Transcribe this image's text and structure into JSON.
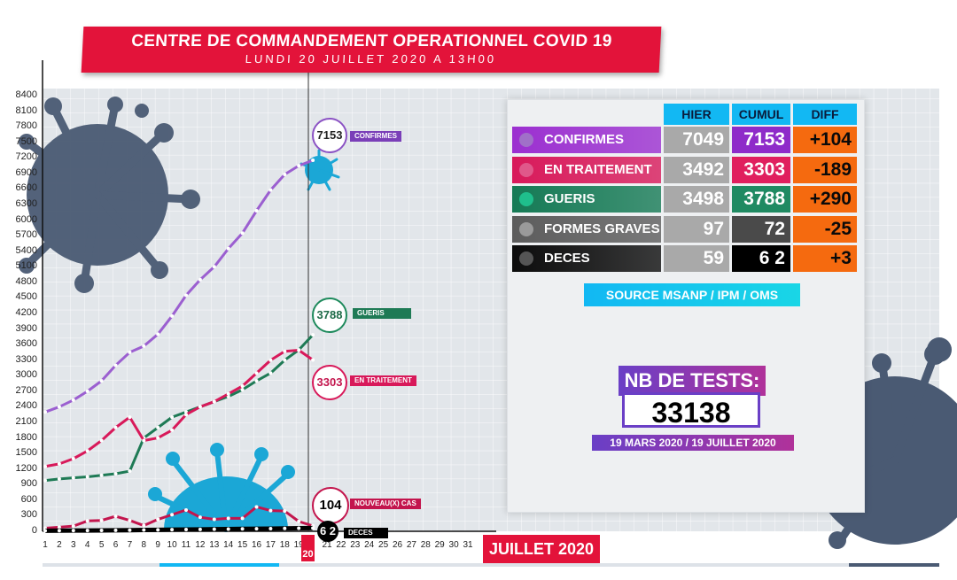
{
  "header": {
    "title": "CENTRE DE COMMANDEMENT OPERATIONNEL COVID 19",
    "subtitle": "LUNDI 20 JUILLET 2020 A 13H00"
  },
  "table": {
    "headers": [
      "HIER",
      "CUMUL",
      "DIFF"
    ],
    "rows": [
      {
        "label": "CONFIRMES",
        "hier": "7049",
        "cumul": "7153",
        "diff": "+104",
        "label_color": "#9b2fd0",
        "dot_color": "#a070c8",
        "cumul_color": "#8e2bc9"
      },
      {
        "label": "EN TRAITEMENT",
        "hier": "3492",
        "cumul": "3303",
        "diff": "-189",
        "label_color": "#d8195a",
        "dot_color": "#e0588a",
        "cumul_color": "#e01f5e"
      },
      {
        "label": "GUERIS",
        "hier": "3498",
        "cumul": "3788",
        "diff": "+290",
        "label_color": "#157a55",
        "dot_color": "#1fbf8c",
        "cumul_color": "#1f8a62"
      },
      {
        "label": "FORMES GRAVES",
        "hier": "97",
        "cumul": "72",
        "diff": "-25",
        "label_color": "#5c5c5c",
        "dot_color": "#9a9a9a",
        "cumul_color": "#4a4a4a"
      },
      {
        "label": "DECES",
        "hier": "59",
        "cumul": "6 2",
        "diff": "+3",
        "label_color": "#0c0c0c",
        "dot_color": "#555555",
        "cumul_color": "#000000"
      }
    ]
  },
  "source": "SOURCE MSANP / IPM / OMS",
  "tests": {
    "title": "NB DE TESTS:",
    "value": "33138",
    "period": "19 MARS 2020 / 19 JUILLET 2020"
  },
  "callouts": {
    "confirmes": {
      "value": "7153",
      "label": "CONFIRMES"
    },
    "gueris": {
      "value": "3788",
      "label": "GUERIS"
    },
    "en_traitement": {
      "value": "3303",
      "label": "EN TRAITEMENT"
    },
    "nouveaux_cas": {
      "value": "104",
      "label": "NOUVEAU(X) CAS"
    },
    "deces": {
      "value": "6 2",
      "label": "DECES"
    }
  },
  "chart": {
    "month_label": "JUILLET 2020",
    "highlight_day": "20"
  },
  "chart_data": {
    "type": "line",
    "x": [
      1,
      2,
      3,
      4,
      5,
      6,
      7,
      8,
      9,
      10,
      11,
      12,
      13,
      14,
      15,
      16,
      17,
      18,
      19,
      20
    ],
    "x_ticks": [
      "1",
      "2",
      "3",
      "4",
      "5",
      "6",
      "7",
      "8",
      "9",
      "10",
      "11",
      "12",
      "13",
      "14",
      "15",
      "16",
      "17",
      "18",
      "19",
      "20",
      "21",
      "22",
      "23",
      "24",
      "25",
      "26",
      "27",
      "28",
      "29",
      "30",
      "31"
    ],
    "y_ticks": [
      "0",
      "300",
      "600",
      "900",
      "1200",
      "1500",
      "1800",
      "2100",
      "2400",
      "2700",
      "3000",
      "3300",
      "3600",
      "3900",
      "4200",
      "4500",
      "4800",
      "5100",
      "5400",
      "5700",
      "6000",
      "6300",
      "6600",
      "6900",
      "7200",
      "7500",
      "7800",
      "8100",
      "8400"
    ],
    "ylim": [
      0,
      8400
    ],
    "series": [
      {
        "name": "CONFIRMES",
        "color": "#9b5fd0",
        "values": [
          2300,
          2400,
          2530,
          2700,
          2900,
          3200,
          3450,
          3570,
          3800,
          4150,
          4550,
          4850,
          5100,
          5450,
          5750,
          6180,
          6580,
          6880,
          7049,
          7153
        ]
      },
      {
        "name": "GUERIS",
        "color": "#1e7a55",
        "values": [
          980,
          1010,
          1030,
          1050,
          1080,
          1110,
          1160,
          1800,
          2000,
          2200,
          2300,
          2400,
          2500,
          2600,
          2730,
          2900,
          3050,
          3300,
          3498,
          3788
        ]
      },
      {
        "name": "EN TRAITEMENT",
        "color": "#d8195a",
        "values": [
          1250,
          1300,
          1400,
          1550,
          1750,
          2000,
          2200,
          1750,
          1800,
          1950,
          2250,
          2400,
          2500,
          2650,
          2800,
          3050,
          3300,
          3470,
          3492,
          3303
        ]
      },
      {
        "name": "NOUVEAU(X) CAS",
        "color": "#c3154d",
        "values": [
          60,
          80,
          100,
          200,
          210,
          290,
          210,
          110,
          230,
          320,
          410,
          270,
          230,
          250,
          250,
          470,
          400,
          390,
          190,
          104
        ]
      },
      {
        "name": "DECES",
        "color": "#000000",
        "values": [
          10,
          12,
          14,
          16,
          18,
          20,
          22,
          25,
          28,
          31,
          34,
          37,
          40,
          43,
          46,
          49,
          52,
          55,
          59,
          62
        ]
      }
    ]
  }
}
